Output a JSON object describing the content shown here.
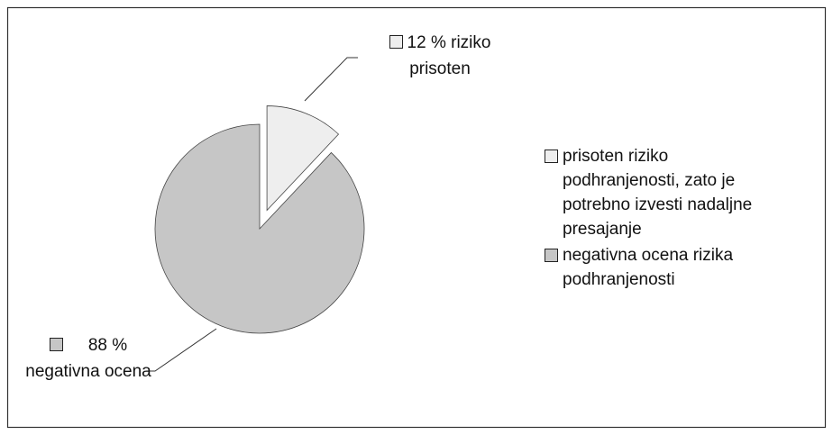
{
  "chart_data": {
    "type": "pie",
    "categories": [
      "prisoten riziko podhranjenosti, zato je potrebno izvesti nadaljne presajanje",
      "negativna ocena rizika podhranjenosti"
    ],
    "values": [
      12,
      88
    ],
    "value_labels": [
      "12 % riziko prisoten",
      "88 % negativna ocena"
    ],
    "colors": [
      "#eeeeee",
      "#c6c6c6"
    ],
    "legend": "right"
  }
}
